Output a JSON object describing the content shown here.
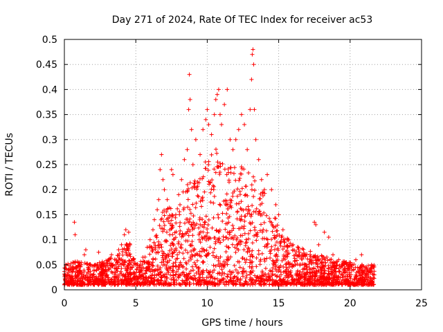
{
  "chart_data": {
    "type": "scatter",
    "title": "Day 271 of 2024, Rate Of TEC Index for receiver ac53",
    "xlabel": "GPS time / hours",
    "ylabel": "ROTI / TECUs",
    "xlim": [
      0,
      25
    ],
    "ylim": [
      0,
      0.5
    ],
    "x_ticks": [
      0,
      5,
      10,
      15,
      20,
      25
    ],
    "x_tick_labels": [
      "0",
      "5",
      "10",
      "15",
      "20",
      "25"
    ],
    "y_ticks": [
      0,
      0.05,
      0.1,
      0.15,
      0.2,
      0.25,
      0.3,
      0.35,
      0.4,
      0.45,
      0.5
    ],
    "y_tick_labels": [
      "0",
      "0.05",
      "0.1",
      "0.15",
      "0.2",
      "0.25",
      "0.3",
      "0.35",
      "0.4",
      "0.45",
      "0.5"
    ],
    "grid": true,
    "marker": "+",
    "marker_color": "#ff0000",
    "series": [
      {
        "name": "ROTI",
        "points": [
          [
            0.05,
            0.02
          ],
          [
            0.1,
            0.05
          ],
          [
            0.2,
            0.03
          ],
          [
            0.3,
            0.04
          ],
          [
            0.5,
            0.02
          ],
          [
            0.6,
            0.055
          ],
          [
            0.7,
            0.135
          ],
          [
            0.75,
            0.11
          ],
          [
            0.8,
            0.035
          ],
          [
            1.0,
            0.03
          ],
          [
            1.2,
            0.05
          ],
          [
            1.4,
            0.07
          ],
          [
            1.5,
            0.08
          ],
          [
            1.7,
            0.04
          ],
          [
            2.0,
            0.03
          ],
          [
            2.2,
            0.05
          ],
          [
            2.4,
            0.075
          ],
          [
            2.6,
            0.04
          ],
          [
            2.8,
            0.05
          ],
          [
            3.0,
            0.03
          ],
          [
            3.3,
            0.07
          ],
          [
            3.6,
            0.06
          ],
          [
            3.8,
            0.08
          ],
          [
            4.0,
            0.09
          ],
          [
            4.2,
            0.11
          ],
          [
            4.3,
            0.12
          ],
          [
            4.5,
            0.115
          ],
          [
            4.6,
            0.09
          ],
          [
            4.8,
            0.06
          ],
          [
            5.0,
            0.05
          ],
          [
            5.3,
            0.04
          ],
          [
            5.5,
            0.065
          ],
          [
            5.8,
            0.085
          ],
          [
            6.0,
            0.1
          ],
          [
            6.2,
            0.12
          ],
          [
            6.3,
            0.14
          ],
          [
            6.5,
            0.16
          ],
          [
            6.6,
            0.18
          ],
          [
            6.7,
            0.24
          ],
          [
            6.8,
            0.27
          ],
          [
            6.9,
            0.22
          ],
          [
            7.0,
            0.2
          ],
          [
            7.2,
            0.18
          ],
          [
            7.5,
            0.24
          ],
          [
            7.6,
            0.23
          ],
          [
            7.8,
            0.15
          ],
          [
            8.0,
            0.19
          ],
          [
            8.2,
            0.22
          ],
          [
            8.4,
            0.26
          ],
          [
            8.6,
            0.28
          ],
          [
            8.7,
            0.36
          ],
          [
            8.75,
            0.43
          ],
          [
            8.8,
            0.38
          ],
          [
            8.9,
            0.32
          ],
          [
            9.0,
            0.25
          ],
          [
            9.2,
            0.3
          ],
          [
            9.5,
            0.27
          ],
          [
            9.7,
            0.32
          ],
          [
            9.9,
            0.34
          ],
          [
            10.0,
            0.36
          ],
          [
            10.1,
            0.33
          ],
          [
            10.3,
            0.31
          ],
          [
            10.5,
            0.35
          ],
          [
            10.6,
            0.38
          ],
          [
            10.7,
            0.39
          ],
          [
            10.8,
            0.4
          ],
          [
            10.9,
            0.35
          ],
          [
            11.0,
            0.33
          ],
          [
            11.2,
            0.37
          ],
          [
            11.4,
            0.4
          ],
          [
            11.6,
            0.3
          ],
          [
            11.8,
            0.28
          ],
          [
            12.0,
            0.3
          ],
          [
            12.2,
            0.32
          ],
          [
            12.4,
            0.35
          ],
          [
            12.6,
            0.33
          ],
          [
            12.8,
            0.28
          ],
          [
            13.0,
            0.36
          ],
          [
            13.1,
            0.42
          ],
          [
            13.15,
            0.47
          ],
          [
            13.2,
            0.48
          ],
          [
            13.25,
            0.45
          ],
          [
            13.3,
            0.36
          ],
          [
            13.4,
            0.3
          ],
          [
            13.6,
            0.26
          ],
          [
            13.8,
            0.22
          ],
          [
            14.0,
            0.2
          ],
          [
            14.2,
            0.23
          ],
          [
            14.5,
            0.2
          ],
          [
            14.8,
            0.17
          ],
          [
            15.0,
            0.15
          ],
          [
            15.3,
            0.12
          ],
          [
            15.6,
            0.1
          ],
          [
            16.0,
            0.09
          ],
          [
            16.4,
            0.08
          ],
          [
            16.8,
            0.07
          ],
          [
            17.2,
            0.07
          ],
          [
            17.5,
            0.135
          ],
          [
            17.6,
            0.13
          ],
          [
            17.8,
            0.09
          ],
          [
            18.2,
            0.115
          ],
          [
            18.5,
            0.105
          ],
          [
            18.8,
            0.07
          ],
          [
            19.2,
            0.06
          ],
          [
            19.6,
            0.05
          ],
          [
            20.0,
            0.05
          ],
          [
            20.4,
            0.06
          ],
          [
            20.8,
            0.07
          ],
          [
            21.2,
            0.04
          ],
          [
            21.5,
            0.05
          ],
          [
            21.7,
            0.03
          ]
        ]
      }
    ],
    "envelope": {
      "x": [
        0,
        1,
        2,
        3,
        4,
        4.5,
        5,
        5.5,
        6,
        6.5,
        7,
        7.5,
        8,
        8.5,
        9,
        9.5,
        10,
        10.5,
        11,
        11.5,
        12,
        12.5,
        13,
        13.5,
        14,
        14.5,
        15,
        16,
        17,
        18,
        19,
        20,
        21,
        21.7
      ],
      "y": [
        0.05,
        0.06,
        0.05,
        0.06,
        0.08,
        0.1,
        0.05,
        0.06,
        0.09,
        0.14,
        0.16,
        0.17,
        0.16,
        0.22,
        0.22,
        0.24,
        0.27,
        0.29,
        0.27,
        0.24,
        0.26,
        0.27,
        0.28,
        0.22,
        0.2,
        0.16,
        0.13,
        0.09,
        0.08,
        0.07,
        0.06,
        0.055,
        0.05,
        0.05
      ]
    },
    "floor": 0.01
  }
}
